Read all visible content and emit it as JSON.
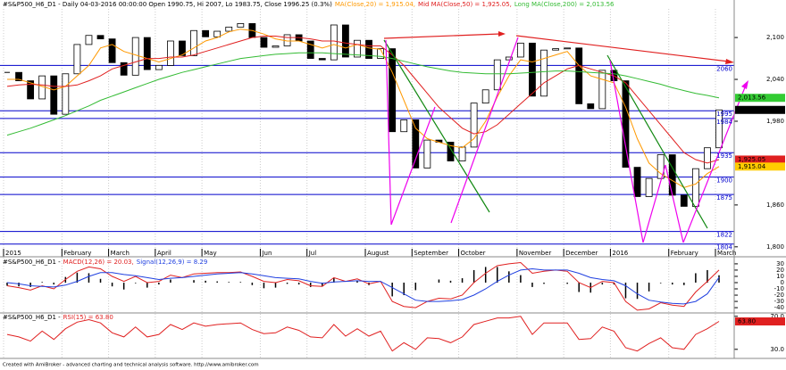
{
  "chart_data": [
    {
      "type": "candlestick",
      "title": "#S&P500_H6_D1 - Daily 04-03-2016 00:00:00 Open 1990.75, Hi 2007, Lo 1983.75, Close 1996.25 (0.3%)",
      "categories": [
        "2015",
        null,
        null,
        null,
        null,
        "February",
        null,
        null,
        null,
        "March",
        null,
        null,
        null,
        "April",
        null,
        null,
        null,
        "May",
        null,
        null,
        null,
        null,
        "Jun",
        null,
        null,
        null,
        "Jul",
        null,
        null,
        null,
        null,
        "August",
        null,
        null,
        null,
        "September",
        null,
        null,
        null,
        "October",
        null,
        null,
        null,
        null,
        "November",
        null,
        null,
        null,
        "December",
        null,
        null,
        null,
        "2016",
        null,
        null,
        null,
        null,
        "February",
        null,
        null,
        null,
        "March"
      ],
      "series": [
        {
          "color": "#000000",
          "values": [
            2050,
            2038,
            2012,
            2045,
            1990,
            2048,
            2090,
            2103,
            2098,
            2064,
            2046,
            2100,
            2054,
            2060,
            2095,
            2074,
            2110,
            2101,
            2109,
            2115,
            2120,
            2100,
            2086,
            2088,
            2104,
            2095,
            2070,
            2068,
            2118,
            2072,
            2096,
            2070,
            2084,
            1965,
            1982,
            1913,
            1953,
            1950,
            1923,
            1943,
            2006,
            2025,
            2068,
            2072,
            2092,
            2016,
            2082,
            2084,
            2085,
            2005,
            1998,
            2053,
            2038,
            1914,
            1872,
            1898,
            1932,
            1874,
            1858,
            1912,
            1942,
            1996.25
          ]
        },
        {
          "name": "MA(Close,20) = 1,915.04,",
          "color": "#ff9900",
          "values": [
            2040,
            2040,
            2035,
            2030,
            2025,
            2030,
            2045,
            2060,
            2085,
            2090,
            2080,
            2075,
            2070,
            2065,
            2070,
            2075,
            2085,
            2095,
            2100,
            2108,
            2112,
            2110,
            2105,
            2098,
            2095,
            2095,
            2090,
            2085,
            2090,
            2085,
            2090,
            2085,
            2083,
            2050,
            2010,
            1970,
            1955,
            1950,
            1945,
            1942,
            1955,
            1980,
            2015,
            2045,
            2068,
            2065,
            2070,
            2075,
            2080,
            2060,
            2045,
            2040,
            2035,
            2000,
            1955,
            1920,
            1905,
            1895,
            1885,
            1890,
            1905,
            1915.04
          ]
        },
        {
          "name": "Mid MA(Close,50) = 1,925.05,",
          "color": "#e02020",
          "values": [
            2030,
            2032,
            2033,
            2032,
            2030,
            2030,
            2032,
            2038,
            2045,
            2055,
            2060,
            2065,
            2070,
            2070,
            2072,
            2072,
            2075,
            2080,
            2085,
            2090,
            2095,
            2100,
            2102,
            2102,
            2100,
            2100,
            2098,
            2095,
            2095,
            2092,
            2090,
            2088,
            2088,
            2075,
            2060,
            2040,
            2020,
            2000,
            1985,
            1970,
            1962,
            1965,
            1975,
            1990,
            2005,
            2020,
            2035,
            2045,
            2055,
            2060,
            2055,
            2050,
            2045,
            2035,
            2015,
            1995,
            1975,
            1955,
            1935,
            1925,
            1920,
            1925.05
          ]
        },
        {
          "name": "Long MA(Close,200) = 2,013.56",
          "color": "#33bb33",
          "values": [
            1960,
            1965,
            1970,
            1976,
            1982,
            1988,
            1995,
            2002,
            2010,
            2016,
            2022,
            2028,
            2034,
            2040,
            2045,
            2050,
            2054,
            2058,
            2062,
            2066,
            2070,
            2072,
            2074,
            2076,
            2077,
            2078,
            2078,
            2078,
            2077,
            2076,
            2075,
            2074,
            2073,
            2070,
            2066,
            2062,
            2058,
            2055,
            2052,
            2050,
            2049,
            2048,
            2048,
            2048,
            2049,
            2050,
            2051,
            2052,
            2052,
            2051,
            2050,
            2049,
            2048,
            2045,
            2041,
            2037,
            2033,
            2028,
            2024,
            2020,
            2017,
            2013.56
          ]
        }
      ],
      "levels": [
        2060,
        1995,
        1984,
        1935,
        1900,
        1875,
        1822,
        1804
      ],
      "level_color": "#0000cc",
      "tags": [
        {
          "value": 2013.56,
          "label": "2,013.56",
          "color": "#33cc33"
        },
        {
          "value": 1996.25,
          "label": "1,996.25",
          "color": "#000000"
        },
        {
          "value": 1925.05,
          "label": "1,925.05",
          "color": "#e02020"
        },
        {
          "value": 1915.04,
          "label": "1,915.04",
          "color": "#ffcc00"
        }
      ],
      "ylim": [
        1787,
        2141
      ],
      "yticks": [
        {
          "value": 2100,
          "label": "2,100"
        },
        {
          "value": 2040,
          "label": "2,040"
        },
        {
          "value": 1980,
          "label": "1,980"
        },
        {
          "value": 1860,
          "label": "1,860"
        },
        {
          "value": 1800,
          "label": "1,800"
        }
      ]
    },
    {
      "type": "line",
      "title": "#S&P500_H6_D1 -",
      "series": [
        {
          "name": "MACD(12,26) = 20.03,",
          "color": "#e02020",
          "values": [
            -5,
            -8,
            -12,
            -5,
            -10,
            5,
            18,
            25,
            22,
            10,
            2,
            10,
            0,
            2,
            12,
            8,
            14,
            15,
            16,
            16,
            17,
            10,
            2,
            0,
            5,
            3,
            -5,
            -6,
            8,
            2,
            6,
            -2,
            2,
            -30,
            -38,
            -40,
            -30,
            -25,
            -26,
            -20,
            0,
            15,
            27,
            30,
            32,
            15,
            18,
            20,
            18,
            0,
            -8,
            2,
            0,
            -30,
            -44,
            -42,
            -32,
            -36,
            -38,
            -15,
            2,
            20.03
          ]
        },
        {
          "name": "Signal(12,26,9) = 8.29",
          "color": "#2040e0",
          "values": [
            0,
            -2,
            -5,
            -6,
            -7,
            -4,
            2,
            10,
            16,
            16,
            13,
            11,
            8,
            5,
            7,
            8,
            10,
            12,
            14,
            15,
            16,
            14,
            11,
            8,
            7,
            6,
            2,
            -1,
            1,
            2,
            3,
            2,
            2,
            -8,
            -18,
            -28,
            -30,
            -30,
            -29,
            -27,
            -20,
            -10,
            2,
            12,
            20,
            22,
            20,
            20,
            20,
            15,
            8,
            5,
            3,
            -5,
            -18,
            -28,
            -31,
            -33,
            -34,
            -30,
            -18,
            8.29
          ]
        }
      ],
      "histogram": {
        "color": "#000000",
        "values": [
          -5,
          -6,
          -7,
          1,
          -3,
          9,
          16,
          15,
          6,
          -6,
          -11,
          -1,
          -8,
          -3,
          5,
          0,
          4,
          3,
          2,
          1,
          1,
          -4,
          -9,
          -8,
          -2,
          -3,
          -7,
          -5,
          7,
          0,
          3,
          -4,
          0,
          -22,
          -20,
          -12,
          0,
          5,
          3,
          7,
          20,
          25,
          25,
          18,
          12,
          -7,
          -2,
          0,
          -2,
          -15,
          -16,
          -3,
          -3,
          -25,
          -26,
          -14,
          -1,
          -3,
          -4,
          15,
          20,
          11.74
        ]
      },
      "ylim": [
        -47,
        37
      ],
      "yticks": [
        30,
        20,
        10,
        0,
        -10,
        -20,
        -30,
        -40
      ]
    },
    {
      "type": "line",
      "title": "#S&P500_H6_D1 -",
      "series": [
        {
          "name": "RSI(15) = 63.80",
          "color": "#e02020",
          "values": [
            48,
            45,
            40,
            52,
            42,
            55,
            63,
            66,
            62,
            50,
            45,
            57,
            45,
            48,
            60,
            54,
            62,
            58,
            60,
            61,
            62,
            54,
            49,
            50,
            57,
            53,
            45,
            44,
            60,
            46,
            55,
            46,
            52,
            28,
            38,
            30,
            44,
            43,
            38,
            45,
            60,
            64,
            68,
            68,
            70,
            48,
            62,
            62,
            62,
            42,
            43,
            57,
            52,
            32,
            28,
            37,
            44,
            32,
            30,
            48,
            55,
            63.8
          ]
        }
      ],
      "tags": [
        {
          "value": 63.8,
          "label": "63.80",
          "color": "#e02020"
        }
      ],
      "ylim": [
        19,
        73
      ],
      "yticks": [
        {
          "value": 70,
          "label": "70.0"
        },
        {
          "value": 30,
          "label": "30.0"
        }
      ]
    }
  ],
  "footer": "Created with AmiBroker - advanced charting and technical analysis software. http://www.amibroker.com"
}
